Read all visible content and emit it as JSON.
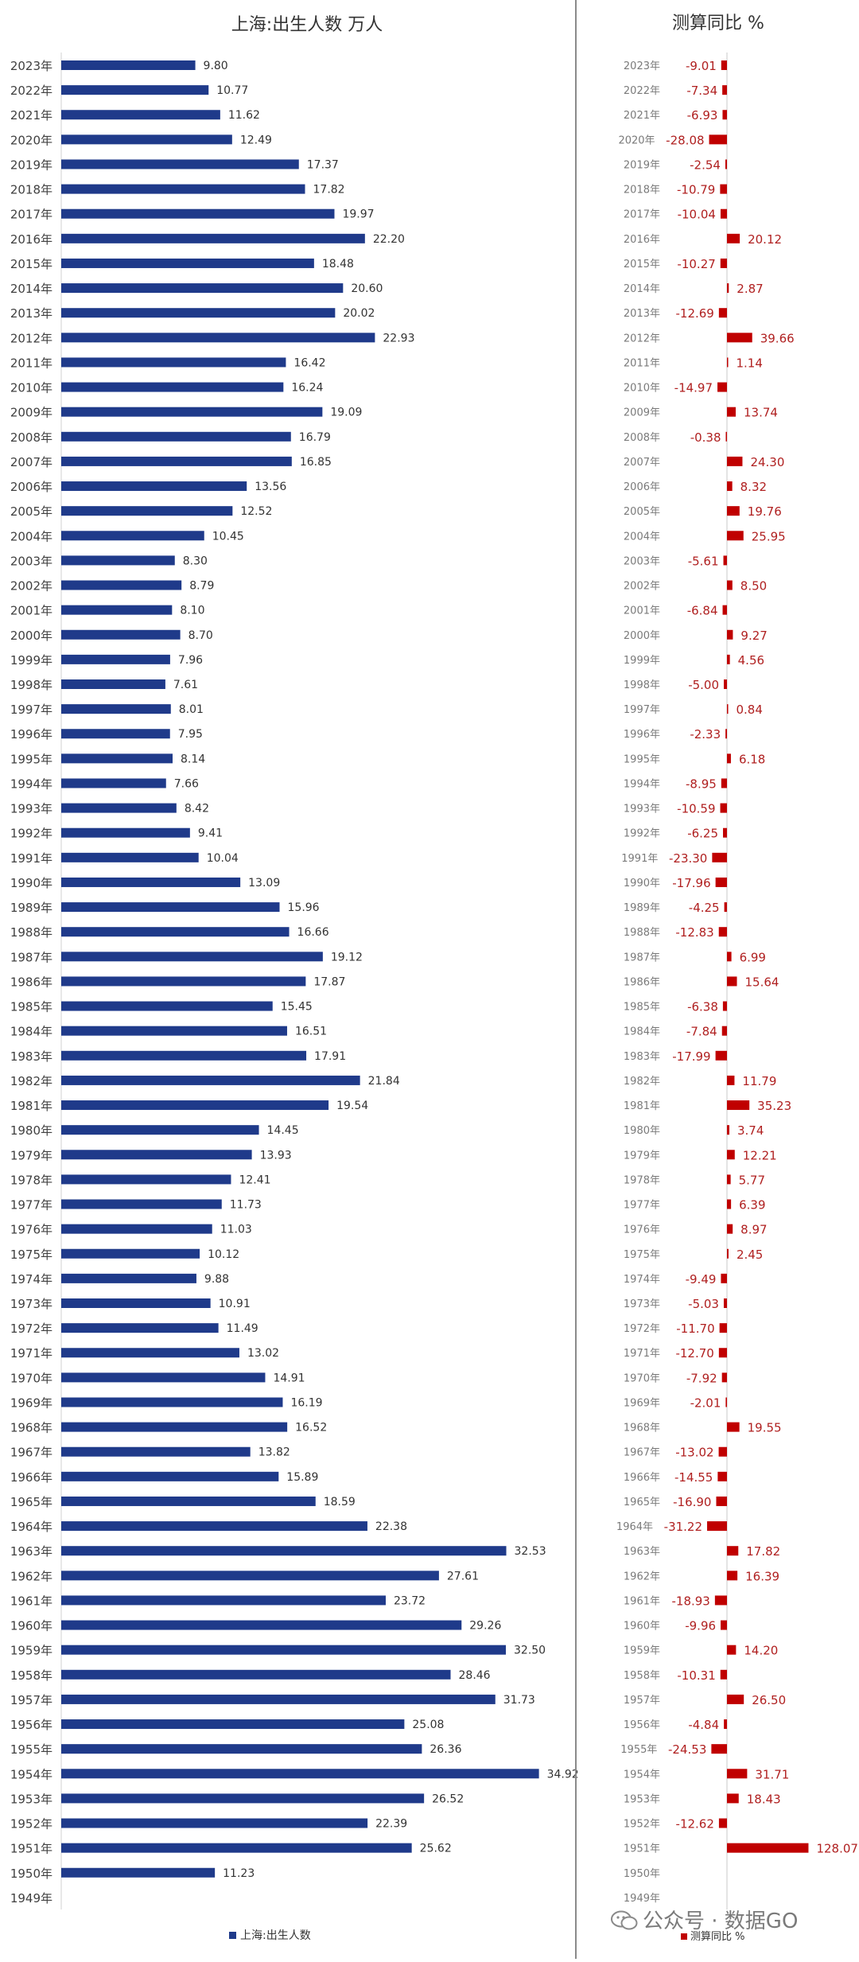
{
  "chart_data": [
    {
      "type": "bar",
      "orientation": "horizontal",
      "title": "上海:出生人数 万人",
      "legend": "上海:出生人数",
      "legend_position": "bottom",
      "grid": false,
      "xlim": [
        0,
        40
      ],
      "color": "#1f3a8a",
      "categories": [
        "2023年",
        "2022年",
        "2021年",
        "2020年",
        "2019年",
        "2018年",
        "2017年",
        "2016年",
        "2015年",
        "2014年",
        "2013年",
        "2012年",
        "2011年",
        "2010年",
        "2009年",
        "2008年",
        "2007年",
        "2006年",
        "2005年",
        "2004年",
        "2003年",
        "2002年",
        "2001年",
        "2000年",
        "1999年",
        "1998年",
        "1997年",
        "1996年",
        "1995年",
        "1994年",
        "1993年",
        "1992年",
        "1991年",
        "1990年",
        "1989年",
        "1988年",
        "1987年",
        "1986年",
        "1985年",
        "1984年",
        "1983年",
        "1982年",
        "1981年",
        "1980年",
        "1979年",
        "1978年",
        "1977年",
        "1976年",
        "1975年",
        "1974年",
        "1973年",
        "1972年",
        "1971年",
        "1970年",
        "1969年",
        "1968年",
        "1967年",
        "1966年",
        "1965年",
        "1964年",
        "1963年",
        "1962年",
        "1961年",
        "1960年",
        "1959年",
        "1958年",
        "1957年",
        "1956年",
        "1955年",
        "1954年",
        "1953年",
        "1952年",
        "1951年",
        "1950年",
        "1949年"
      ],
      "values": [
        "9.80",
        "10.77",
        "11.62",
        "12.49",
        "17.37",
        "17.82",
        "19.97",
        "22.20",
        "18.48",
        "20.60",
        "20.02",
        "22.93",
        "16.42",
        "16.24",
        "19.09",
        "16.79",
        "16.85",
        "13.56",
        "12.52",
        "10.45",
        "8.30",
        "8.79",
        "8.10",
        "8.70",
        "7.96",
        "7.61",
        "8.01",
        "7.95",
        "8.14",
        "7.66",
        "8.42",
        "9.41",
        "10.04",
        "13.09",
        "15.96",
        "16.66",
        "19.12",
        "17.87",
        "15.45",
        "16.51",
        "17.91",
        "21.84",
        "19.54",
        "14.45",
        "13.93",
        "12.41",
        "11.73",
        "11.03",
        "10.12",
        "9.88",
        "10.91",
        "11.49",
        "13.02",
        "14.91",
        "16.19",
        "16.52",
        "13.82",
        "15.89",
        "18.59",
        "22.38",
        "32.53",
        "27.61",
        "23.72",
        "29.26",
        "32.50",
        "28.46",
        "31.73",
        "25.08",
        "26.36",
        "34.92",
        "26.52",
        "22.39",
        "25.62",
        "11.23",
        null
      ]
    },
    {
      "type": "bar",
      "orientation": "horizontal",
      "title": "测算同比 %",
      "legend": "测算同比 %",
      "legend_position": "bottom",
      "grid": false,
      "xlim": [
        -40,
        140
      ],
      "color": "#c00000",
      "categories": [
        "2023年",
        "2022年",
        "2021年",
        "2020年",
        "2019年",
        "2018年",
        "2017年",
        "2016年",
        "2015年",
        "2014年",
        "2013年",
        "2012年",
        "2011年",
        "2010年",
        "2009年",
        "2008年",
        "2007年",
        "2006年",
        "2005年",
        "2004年",
        "2003年",
        "2002年",
        "2001年",
        "2000年",
        "1999年",
        "1998年",
        "1997年",
        "1996年",
        "1995年",
        "1994年",
        "1993年",
        "1992年",
        "1991年",
        "1990年",
        "1989年",
        "1988年",
        "1987年",
        "1986年",
        "1985年",
        "1984年",
        "1983年",
        "1982年",
        "1981年",
        "1980年",
        "1979年",
        "1978年",
        "1977年",
        "1976年",
        "1975年",
        "1974年",
        "1973年",
        "1972年",
        "1971年",
        "1970年",
        "1969年",
        "1968年",
        "1967年",
        "1966年",
        "1965年",
        "1964年",
        "1963年",
        "1962年",
        "1961年",
        "1960年",
        "1959年",
        "1958年",
        "1957年",
        "1956年",
        "1955年",
        "1954年",
        "1953年",
        "1952年",
        "1951年",
        "1950年",
        "1949年"
      ],
      "values": [
        "-9.01",
        "-7.34",
        "-6.93",
        "-28.08",
        "-2.54",
        "-10.79",
        "-10.04",
        "20.12",
        "-10.27",
        "2.87",
        "-12.69",
        "39.66",
        "1.14",
        "-14.97",
        "13.74",
        "-0.38",
        "24.30",
        "8.32",
        "19.76",
        "25.95",
        "-5.61",
        "8.50",
        "-6.84",
        "9.27",
        "4.56",
        "-5.00",
        "0.84",
        "-2.33",
        "6.18",
        "-8.95",
        "-10.59",
        "-6.25",
        "-23.30",
        "-17.96",
        "-4.25",
        "-12.83",
        "6.99",
        "15.64",
        "-6.38",
        "-7.84",
        "-17.99",
        "11.79",
        "35.23",
        "3.74",
        "12.21",
        "5.77",
        "6.39",
        "8.97",
        "2.45",
        "-9.49",
        "-5.03",
        "-11.70",
        "-12.70",
        "-7.92",
        "-2.01",
        "19.55",
        "-13.02",
        "-14.55",
        "-16.90",
        "-31.22",
        "17.82",
        "16.39",
        "-18.93",
        "-9.96",
        "14.20",
        "-10.31",
        "26.50",
        "-4.84",
        "-24.53",
        "31.71",
        "18.43",
        "-12.62",
        "128.07",
        null,
        null
      ]
    }
  ],
  "watermark": "公众号 · 数据GO",
  "colors": {
    "left_bar": "#1f3a8a",
    "right_bar": "#c00000",
    "right_label": "#b02020",
    "divider": "#8a8a8a"
  }
}
